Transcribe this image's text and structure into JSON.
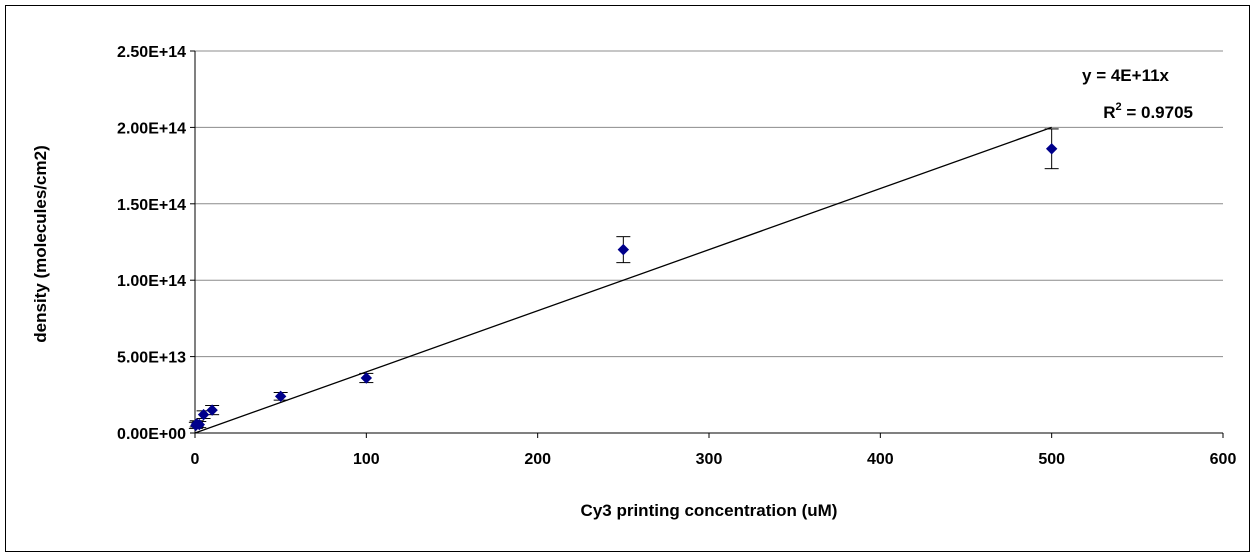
{
  "chart_data": {
    "type": "scatter",
    "xlabel": "Cy3 printing concentration (uM)",
    "ylabel": "density (molecules/cm2)",
    "xlim": [
      0,
      600
    ],
    "ylim": [
      0,
      250000000000000
    ],
    "x_ticks": [
      "0",
      "100",
      "200",
      "300",
      "400",
      "500",
      "600"
    ],
    "y_ticks": [
      "0.00E+00",
      "5.00E+13",
      "1.00E+14",
      "1.50E+14",
      "2.00E+14",
      "2.50E+14"
    ],
    "grid": "horizontal",
    "series": [
      {
        "marker": "diamond",
        "color": "#00008B",
        "points": [
          {
            "x": 0.5,
            "y": 5000000000000,
            "err": 2000000000000
          },
          {
            "x": 1,
            "y": 6000000000000,
            "err": 2000000000000
          },
          {
            "x": 2.5,
            "y": 5500000000000,
            "err": 2000000000000
          },
          {
            "x": 5,
            "y": 12000000000000,
            "err": 2500000000000
          },
          {
            "x": 10,
            "y": 15000000000000,
            "err": 3000000000000
          },
          {
            "x": 50,
            "y": 24000000000000,
            "err": 2500000000000
          },
          {
            "x": 100,
            "y": 36000000000000,
            "err": 3000000000000
          },
          {
            "x": 250,
            "y": 120000000000000,
            "err": 8500000000000
          },
          {
            "x": 500,
            "y": 186000000000000,
            "err": 13000000000000
          }
        ]
      }
    ],
    "trendline": {
      "type": "linear",
      "slope": 400000000000,
      "intercept": 0,
      "x_range": [
        0,
        500
      ]
    },
    "annotations": {
      "equation": "y = 4E+11x",
      "r2_prefix": "R",
      "r2_exponent": "2",
      "r2_value": " = 0.9705"
    }
  }
}
